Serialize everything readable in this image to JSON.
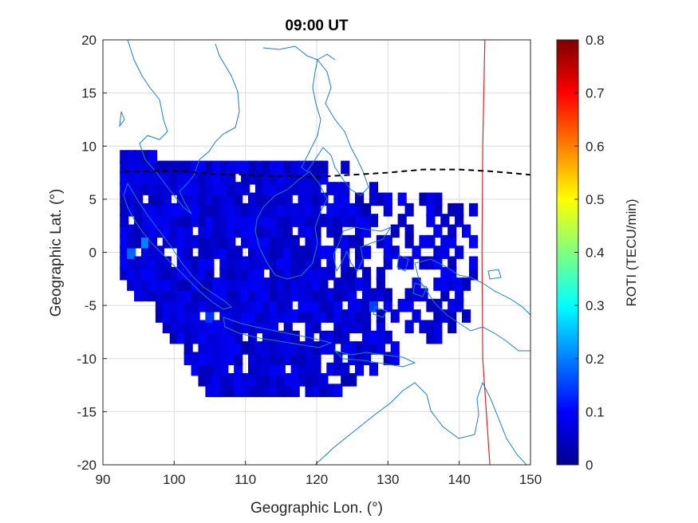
{
  "chart_data": {
    "type": "heatmap",
    "title": "09:00 UT",
    "xlabel": "Geographic Lon. (°)",
    "ylabel": "Geographic Lat. (°)",
    "xlim": [
      90,
      150
    ],
    "ylim": [
      -20,
      20
    ],
    "xticks": [
      "90",
      "100",
      "110",
      "120",
      "130",
      "140",
      "150"
    ],
    "yticks": [
      "20",
      "15",
      "10",
      "5",
      "0",
      "-5",
      "-10",
      "-15",
      "-20"
    ],
    "grid": true,
    "colorbar": {
      "label": "ROTI (TECU/min)",
      "range": [
        0,
        0.8
      ],
      "ticks": [
        "0",
        "0.1",
        "0.2",
        "0.3",
        "0.4",
        "0.5",
        "0.6",
        "0.7",
        "0.8"
      ],
      "colormap": "jet"
    },
    "magnetic_equator": {
      "style": "dashed",
      "color": "#000000",
      "points": [
        [
          93,
          7.6
        ],
        [
          100,
          7.7
        ],
        [
          105,
          7.4
        ],
        [
          110,
          7.3
        ],
        [
          115,
          7.2
        ],
        [
          120,
          7.1
        ],
        [
          125,
          7.3
        ],
        [
          130,
          7.5
        ],
        [
          135,
          7.8
        ],
        [
          140,
          7.8
        ],
        [
          145,
          7.6
        ],
        [
          150,
          7.3
        ]
      ]
    },
    "boundary_line": {
      "color": "#e02020",
      "points": [
        [
          143.6,
          20
        ],
        [
          143.3,
          10
        ],
        [
          143.2,
          0
        ],
        [
          143.3,
          -10
        ],
        [
          144.3,
          -20
        ]
      ]
    },
    "coastline_color": "#1a7fc0",
    "roti_cells_summary": "ROTI values mostly 0.02–0.12 TECU/min, isolated peaks near 0.2 around 95°E, 1°S",
    "roti_cells": [
      {
        "lon": 96,
        "lat": 1,
        "v": 0.2
      },
      {
        "lon": 94,
        "lat": 0,
        "v": 0.18
      },
      {
        "lon": 100,
        "lat": 9,
        "v": 0.12
      },
      {
        "lon": 105,
        "lat": -6,
        "v": 0.14
      },
      {
        "lon": 110,
        "lat": -8,
        "v": 0.13
      },
      {
        "lon": 128,
        "lat": -5,
        "v": 0.15
      },
      {
        "lon": 135,
        "lat": -3,
        "v": 0.12
      }
    ]
  }
}
